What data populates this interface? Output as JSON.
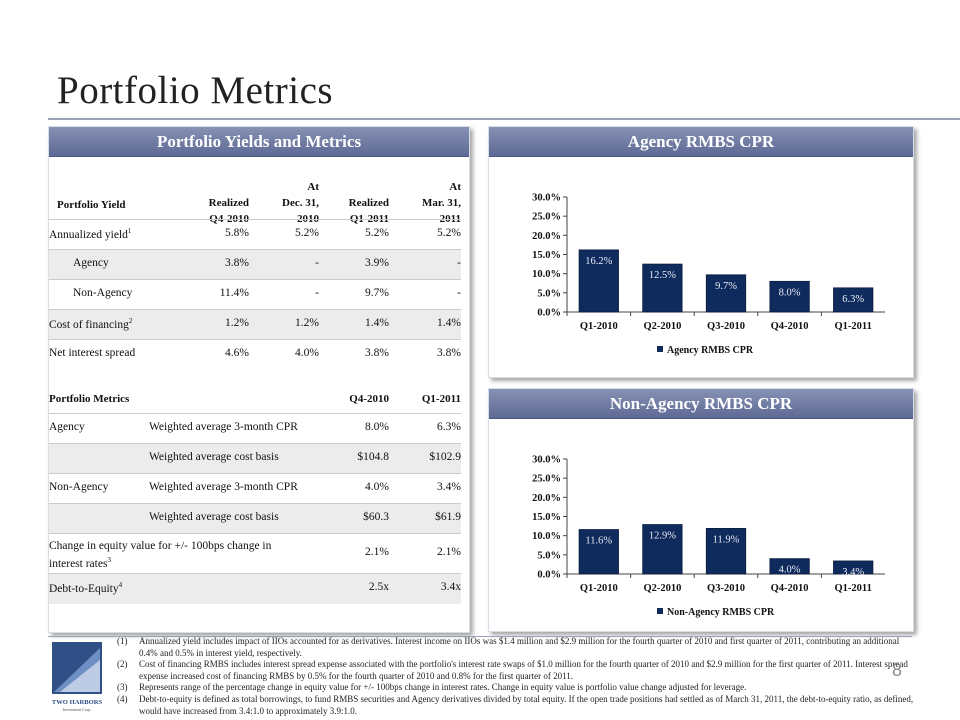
{
  "page": {
    "title": "Portfolio Metrics",
    "page_number": "8"
  },
  "yields_panel": {
    "header": "Portfolio Yields and Metrics",
    "columns": [
      [
        "",
        "",
        "Realized",
        "Q4-2010"
      ],
      [
        "",
        "At",
        "Dec. 31,",
        "2010"
      ],
      [
        "",
        "",
        "Realized",
        "Q1-2011"
      ],
      [
        "",
        "At",
        "Mar. 31,",
        "2011"
      ]
    ],
    "row_label_header": "Portfolio Yield",
    "rows": [
      {
        "label": "Annualized yield",
        "sup": "1",
        "indent": false,
        "values": [
          "5.8%",
          "5.2%",
          "5.2%",
          "5.2%"
        ]
      },
      {
        "label": "Agency",
        "sup": "",
        "indent": true,
        "values": [
          "3.8%",
          "-",
          "3.9%",
          "-"
        ]
      },
      {
        "label": "Non-Agency",
        "sup": "",
        "indent": true,
        "values": [
          "11.4%",
          "-",
          "9.7%",
          "-"
        ]
      },
      {
        "label": "Cost of financing",
        "sup": "2",
        "indent": false,
        "values": [
          "1.2%",
          "1.2%",
          "1.4%",
          "1.4%"
        ]
      },
      {
        "label": "Net interest spread",
        "sup": "",
        "indent": false,
        "values": [
          "4.6%",
          "4.0%",
          "3.8%",
          "3.8%"
        ]
      }
    ],
    "metrics_header": {
      "label": "Portfolio Metrics",
      "col1": "Q4-2010",
      "col2": "Q1-2011"
    },
    "metrics_rows": [
      {
        "group": "Agency",
        "label": "Weighted average 3-month CPR",
        "values": [
          "8.0%",
          "6.3%"
        ]
      },
      {
        "group": "",
        "label": "Weighted average cost basis",
        "values": [
          "$104.8",
          "$102.9"
        ]
      },
      {
        "group": "Non-Agency",
        "label": "Weighted average 3-month CPR",
        "values": [
          "4.0%",
          "3.4%"
        ]
      },
      {
        "group": "",
        "label": "Weighted average cost basis",
        "values": [
          "$60.3",
          "$61.9"
        ]
      }
    ],
    "equity_row": {
      "line1": "Change in equity value for +/- 100bps change in",
      "line2": "interest rates",
      "sup": "3",
      "values": [
        "2.1%",
        "2.1%"
      ]
    },
    "debt_row": {
      "label": "Debt-to-Equity",
      "sup": "4",
      "values": [
        "2.5x",
        "3.4x"
      ]
    }
  },
  "agency_panel": {
    "header": "Agency RMBS CPR"
  },
  "nonagency_panel": {
    "header": "Non-Agency RMBS CPR"
  },
  "chart_data": [
    {
      "type": "bar",
      "categories": [
        "Q1-2010",
        "Q2-2010",
        "Q3-2010",
        "Q4-2010",
        "Q1-2011"
      ],
      "series": [
        {
          "name": "Agency RMBS CPR",
          "values": [
            16.2,
            12.5,
            9.7,
            8.0,
            6.3
          ]
        }
      ],
      "data_labels": [
        "16.2%",
        "12.5%",
        "9.7%",
        "8.0%",
        "6.3%"
      ],
      "yticks": [
        "0.0%",
        "5.0%",
        "10.0%",
        "15.0%",
        "20.0%",
        "25.0%",
        "30.0%"
      ],
      "ylim": [
        0,
        30
      ],
      "legend": "bottom",
      "bar_color": "#0f2a5c"
    },
    {
      "type": "bar",
      "categories": [
        "Q1-2010",
        "Q2-2010",
        "Q3-2010",
        "Q4-2010",
        "Q1-2011"
      ],
      "series": [
        {
          "name": "Non-Agency RMBS CPR",
          "values": [
            11.6,
            12.9,
            11.9,
            4.0,
            3.4
          ]
        }
      ],
      "data_labels": [
        "11.6%",
        "12.9%",
        "11.9%",
        "4.0%",
        "3.4%"
      ],
      "yticks": [
        "0.0%",
        "5.0%",
        "10.0%",
        "15.0%",
        "20.0%",
        "25.0%",
        "30.0%"
      ],
      "ylim": [
        0,
        30
      ],
      "legend": "bottom",
      "bar_color": "#0f2a5c"
    }
  ],
  "footnotes": [
    {
      "num": "(1)",
      "text": "Annualized yield includes impact of IIOs accounted for as derivatives. Interest income on IIOs was $1.4 million and $2.9 million for the fourth quarter of 2010 and first quarter of 2011, contributing an additional 0.4% and 0.5% in interest yield, respectively."
    },
    {
      "num": "(2)",
      "text": "Cost of financing RMBS includes interest spread expense associated with the portfolio's interest rate swaps of $1.0 million for the fourth quarter of 2010 and $2.9 million for the first quarter of 2011. Interest spread expense increased cost of financing RMBS by 0.5% for the fourth quarter of 2010 and 0.8% for the first quarter of 2011."
    },
    {
      "num": "(3)",
      "text": "Represents range of the percentage change in equity value for +/- 100bps change in interest rates. Change in equity value is portfolio value change adjusted for leverage."
    },
    {
      "num": "(4)",
      "text": "Debt-to-equity is defined as total borrowings, to fund RMBS securities and Agency derivatives divided by total equity. If the open trade positions had settled as of March 31, 2011, the debt-to-equity ratio, as defined, would have increased from 3.4:1.0 to approximately 3.9:1.0."
    }
  ],
  "logo": {
    "text": "TWO HARBORS",
    "subtext": "Investment Corp."
  }
}
